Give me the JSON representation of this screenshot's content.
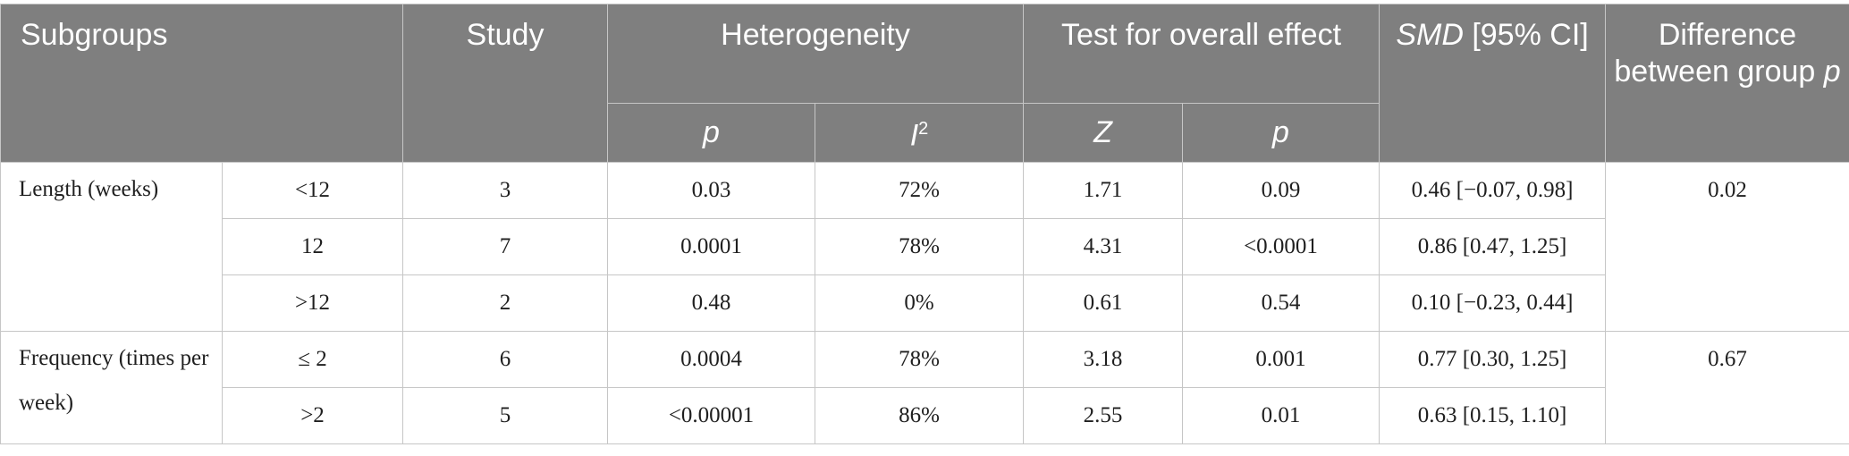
{
  "headers": {
    "subgroups": "Subgroups",
    "study": "Study",
    "heterogeneity": "Heterogeneity",
    "overall_effect": "Test for overall effect",
    "smd_italic": "SMD",
    "smd_rest": " [95% CI]",
    "difference": "Difference between group ",
    "difference_p": "p",
    "het_p": "p",
    "het_i": "I",
    "het_i_sup": "2",
    "z": "Z",
    "overall_p": "p"
  },
  "groups": [
    {
      "label": "Length (weeks)",
      "difference": "0.02",
      "rows": [
        {
          "level": "<12",
          "study": "3",
          "het_p": "0.03",
          "i2": "72%",
          "z": "1.71",
          "p": "0.09",
          "smd": "0.46 [−0.07, 0.98]"
        },
        {
          "level": "12",
          "study": "7",
          "het_p": "0.0001",
          "i2": "78%",
          "z": "4.31",
          "p": "<0.0001",
          "smd": "0.86 [0.47, 1.25]"
        },
        {
          "level": ">12",
          "study": "2",
          "het_p": "0.48",
          "i2": "0%",
          "z": "0.61",
          "p": "0.54",
          "smd": "0.10 [−0.23, 0.44]"
        }
      ]
    },
    {
      "label": "Frequency (times per week)",
      "difference": "0.67",
      "rows": [
        {
          "level": "≤ 2",
          "study": "6",
          "het_p": "0.0004",
          "i2": "78%",
          "z": "3.18",
          "p": "0.001",
          "smd": "0.77 [0.30, 1.25]"
        },
        {
          "level": ">2",
          "study": "5",
          "het_p": "<0.00001",
          "i2": "86%",
          "z": "2.55",
          "p": "0.01",
          "smd": "0.63 [0.15, 1.10]"
        }
      ]
    }
  ]
}
